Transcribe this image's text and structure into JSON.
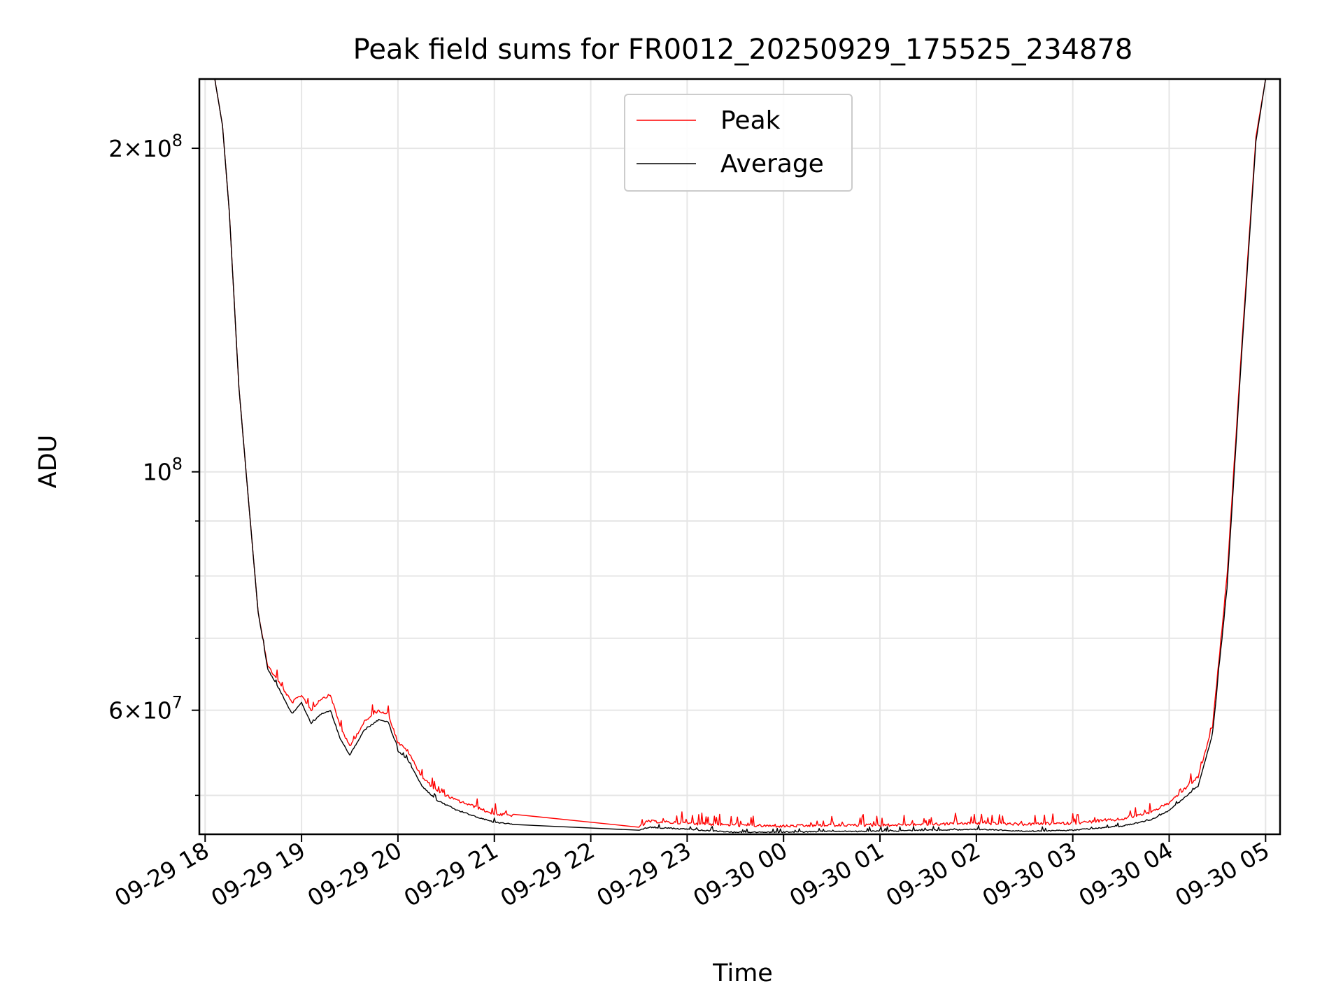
{
  "chart_data": {
    "type": "line",
    "title": "Peak field sums for FR0012_20250929_175525_234878",
    "xlabel": "Time",
    "ylabel": "ADU",
    "y_scale": "log",
    "ylim": [
      46000000,
      232000000
    ],
    "xlim_hours": [
      17.94,
      29.15
    ],
    "grid": true,
    "legend_position": "top-center",
    "x_tick_labels": [
      "09-29 18",
      "09-29 19",
      "09-29 20",
      "09-29 21",
      "09-29 22",
      "09-29 23",
      "09-30 00",
      "09-30 01",
      "09-30 02",
      "09-30 03",
      "09-30 04",
      "09-30 05"
    ],
    "x_tick_hours": [
      18,
      19,
      20,
      21,
      22,
      23,
      24,
      25,
      26,
      27,
      28,
      29
    ],
    "y_major_ticks": [
      {
        "value": 200000000,
        "mantissa": "2",
        "exponent": "8"
      },
      {
        "value": 100000000,
        "mantissa": "",
        "exponent": "8"
      },
      {
        "value": 60000000,
        "mantissa": "6",
        "exponent": "7"
      }
    ],
    "y_minor_ticks": [
      50000000,
      70000000,
      80000000,
      90000000
    ],
    "series": [
      {
        "name": "Peak",
        "color": "#ff0000",
        "points": [
          [
            17.94,
            232000000
          ],
          [
            18.1,
            232000000
          ],
          [
            18.18,
            210000000
          ],
          [
            18.25,
            175000000
          ],
          [
            18.35,
            120000000
          ],
          [
            18.45,
            94000000
          ],
          [
            18.55,
            74000000
          ],
          [
            18.65,
            66000000
          ],
          [
            18.8,
            63000000
          ],
          [
            18.9,
            61000000
          ],
          [
            19.0,
            62000000
          ],
          [
            19.1,
            60000000
          ],
          [
            19.2,
            61500000
          ],
          [
            19.3,
            62000000
          ],
          [
            19.4,
            58000000
          ],
          [
            19.5,
            55500000
          ],
          [
            19.65,
            58500000
          ],
          [
            19.8,
            60000000
          ],
          [
            19.9,
            59500000
          ],
          [
            20.0,
            56000000
          ],
          [
            20.1,
            55000000
          ],
          [
            20.25,
            52000000
          ],
          [
            20.4,
            50500000
          ],
          [
            20.6,
            49500000
          ],
          [
            20.8,
            48800000
          ],
          [
            21.0,
            48000000
          ],
          [
            21.2,
            47900000
          ],
          [
            22.5,
            46700000
          ],
          [
            22.6,
            47300000
          ],
          [
            23.0,
            47100000
          ],
          [
            23.5,
            46900000
          ],
          [
            24.0,
            46800000
          ],
          [
            24.5,
            46900000
          ],
          [
            25.0,
            46900000
          ],
          [
            25.5,
            47000000
          ],
          [
            26.0,
            47100000
          ],
          [
            26.5,
            47000000
          ],
          [
            27.0,
            47100000
          ],
          [
            27.5,
            47500000
          ],
          [
            27.8,
            48200000
          ],
          [
            28.0,
            49200000
          ],
          [
            28.3,
            52000000
          ],
          [
            28.45,
            58000000
          ],
          [
            28.6,
            80000000
          ],
          [
            28.75,
            130000000
          ],
          [
            28.9,
            205000000
          ],
          [
            29.0,
            232000000
          ],
          [
            29.15,
            232000000
          ]
        ]
      },
      {
        "name": "Average",
        "color": "#000000",
        "points": [
          [
            17.94,
            232000000
          ],
          [
            18.1,
            232000000
          ],
          [
            18.18,
            210000000
          ],
          [
            18.25,
            175000000
          ],
          [
            18.35,
            120000000
          ],
          [
            18.45,
            94000000
          ],
          [
            18.55,
            74000000
          ],
          [
            18.65,
            65500000
          ],
          [
            18.8,
            62000000
          ],
          [
            18.9,
            59500000
          ],
          [
            19.0,
            61000000
          ],
          [
            19.1,
            58300000
          ],
          [
            19.2,
            59500000
          ],
          [
            19.3,
            60000000
          ],
          [
            19.4,
            56500000
          ],
          [
            19.5,
            54500000
          ],
          [
            19.65,
            57500000
          ],
          [
            19.8,
            58800000
          ],
          [
            19.9,
            58500000
          ],
          [
            20.0,
            55000000
          ],
          [
            20.1,
            54000000
          ],
          [
            20.25,
            51000000
          ],
          [
            20.4,
            49500000
          ],
          [
            20.6,
            48500000
          ],
          [
            20.8,
            47800000
          ],
          [
            21.0,
            47200000
          ],
          [
            21.2,
            47000000
          ],
          [
            22.5,
            46400000
          ],
          [
            22.6,
            46700000
          ],
          [
            23.0,
            46500000
          ],
          [
            23.5,
            46200000
          ],
          [
            24.0,
            46200000
          ],
          [
            24.5,
            46300000
          ],
          [
            25.0,
            46300000
          ],
          [
            25.5,
            46400000
          ],
          [
            26.0,
            46500000
          ],
          [
            26.5,
            46300000
          ],
          [
            27.0,
            46400000
          ],
          [
            27.5,
            46800000
          ],
          [
            27.8,
            47400000
          ],
          [
            28.0,
            48400000
          ],
          [
            28.3,
            51000000
          ],
          [
            28.45,
            57000000
          ],
          [
            28.6,
            78000000
          ],
          [
            28.75,
            128000000
          ],
          [
            28.9,
            203000000
          ],
          [
            29.0,
            232000000
          ],
          [
            29.15,
            232000000
          ]
        ]
      }
    ]
  }
}
